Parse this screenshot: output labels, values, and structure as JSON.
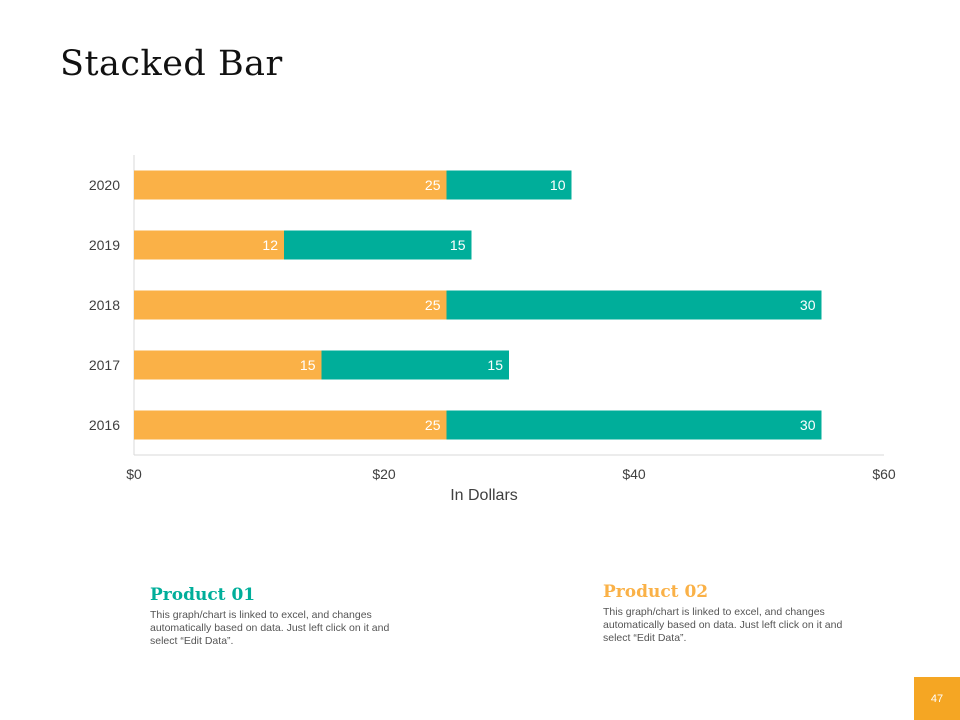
{
  "slide": {
    "title": "Stacked Bar",
    "page_number": "47"
  },
  "colors": {
    "product01": "#00AE9A",
    "product02": "#FAB147",
    "page_badge": "#F5A623"
  },
  "legend": [
    {
      "title": "Product 01",
      "description": "This graph/chart is linked to excel, and changes automatically based on data. Just left click on it and select “Edit Data”."
    },
    {
      "title": "Product 02",
      "description": "This graph/chart is linked to excel, and changes automatically based on data. Just left click on it and select “Edit Data”."
    }
  ],
  "chart_data": {
    "type": "bar",
    "orientation": "horizontal",
    "stacked": true,
    "title": "",
    "xlabel": "In Dollars",
    "ylabel": "",
    "xlim": [
      0,
      60
    ],
    "x_ticks": [
      0,
      20,
      40,
      60
    ],
    "x_tick_labels": [
      "$0",
      "$20",
      "$40",
      "$60"
    ],
    "categories": [
      "2016",
      "2017",
      "2018",
      "2019",
      "2020"
    ],
    "series": [
      {
        "name": "Product 02",
        "values": [
          25,
          15,
          25,
          12,
          25
        ]
      },
      {
        "name": "Product 01",
        "values": [
          30,
          15,
          30,
          15,
          10
        ]
      }
    ],
    "data_labels": true,
    "grid": false,
    "legend": "none"
  }
}
